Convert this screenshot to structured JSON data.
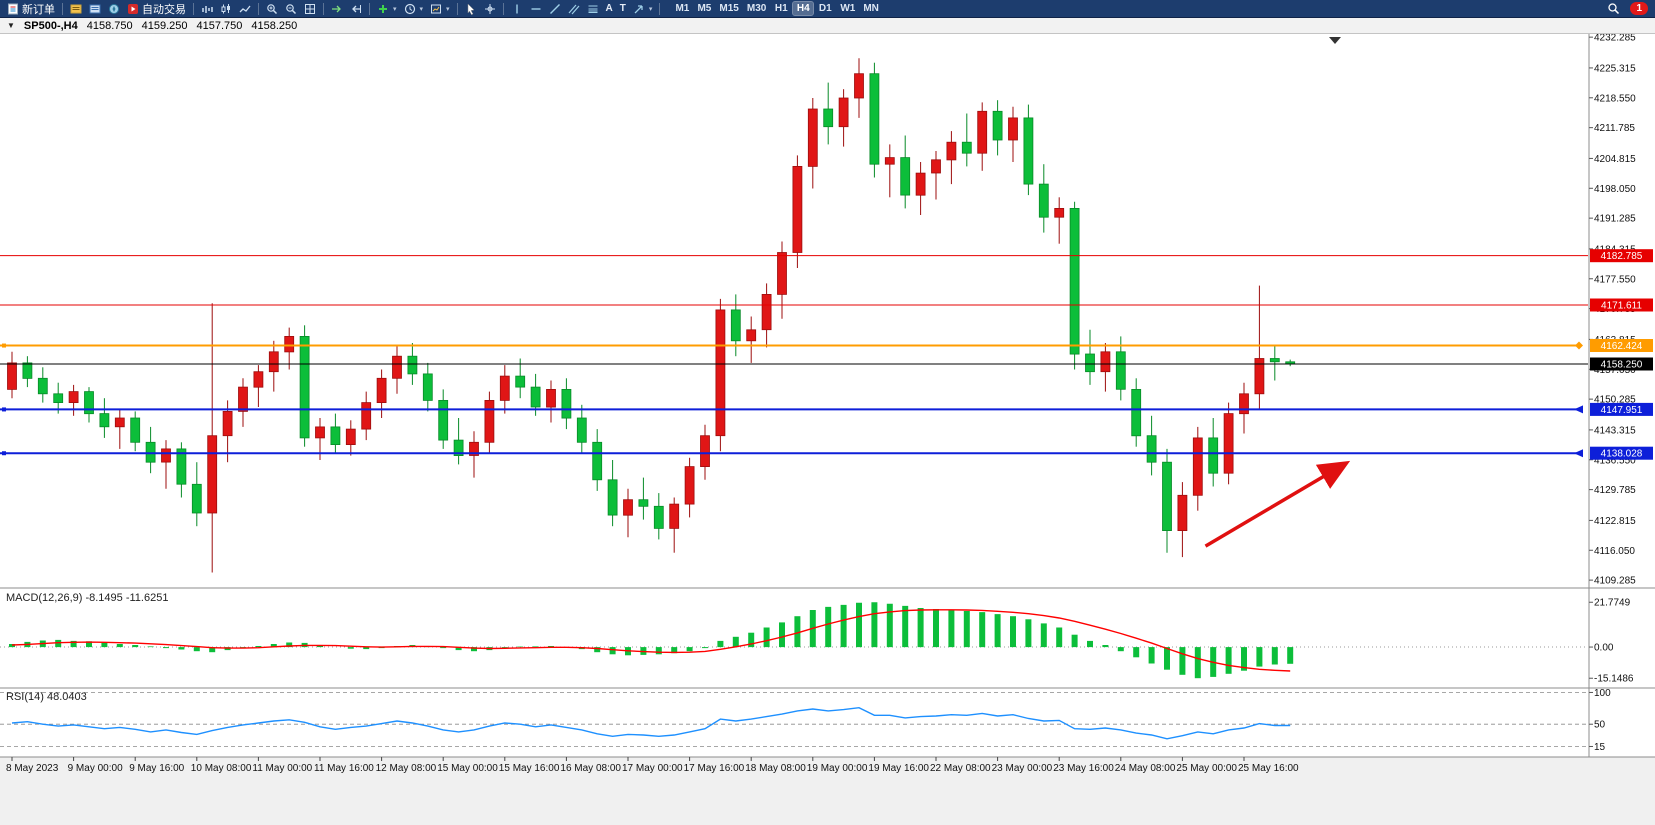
{
  "toolbar": {
    "new_order": "新订单",
    "autotrade": "自动交易",
    "timeframes": [
      "M1",
      "M5",
      "M15",
      "M30",
      "H1",
      "H4",
      "D1",
      "W1",
      "MN"
    ],
    "active_timeframe": "H4",
    "notification_count": "1",
    "icons": [
      "new-order",
      "market-watch",
      "data-window",
      "navigator",
      "autotrade",
      "bar-chart",
      "candlestick-chart",
      "line-chart",
      "zoom-in",
      "zoom-out",
      "tile-windows",
      "auto-scroll",
      "chart-shift",
      "indicators",
      "periods",
      "templates",
      "cursor",
      "crosshair",
      "vertical-line",
      "horizontal-line",
      "trendline",
      "channel",
      "fibonacci",
      "text",
      "text-label",
      "arrows",
      "search",
      "notification"
    ]
  },
  "chart_header": {
    "symbol_period": "SP500-,H4",
    "open": "4158.750",
    "high": "4159.250",
    "low": "4157.750",
    "close": "4158.250"
  },
  "chart_data": {
    "type": "candlestick",
    "symbol": "SP500-",
    "timeframe": "H4",
    "price_range": [
      4107.5,
      4233.0
    ],
    "price_axis_labels": [
      "4232.285",
      "4225.315",
      "4218.550",
      "4211.785",
      "4204.815",
      "4198.050",
      "4191.285",
      "4184.315",
      "4177.550",
      "4170.785",
      "4163.815",
      "4157.050",
      "4150.285",
      "4143.315",
      "4136.550",
      "4129.785",
      "4122.815",
      "4116.050",
      "4109.285"
    ],
    "time_labels": [
      "8 May 2023",
      "9 May 00:00",
      "9 May 16:00",
      "10 May 08:00",
      "11 May 00:00",
      "11 May 16:00",
      "12 May 08:00",
      "15 May 00:00",
      "15 May 16:00",
      "16 May 08:00",
      "17 May 00:00",
      "17 May 16:00",
      "18 May 08:00",
      "19 May 00:00",
      "19 May 16:00",
      "22 May 08:00",
      "23 May 00:00",
      "23 May 16:00",
      "24 May 08:00",
      "25 May 00:00",
      "25 May 16:00"
    ],
    "colors": {
      "up": "#e01616",
      "up_border": "#9c0d0d",
      "down": "#0cbe3a",
      "down_border": "#078a27"
    },
    "candles": [
      [
        4152.5,
        4161,
        4150.5,
        4158.5
      ],
      [
        4158.5,
        4160,
        4153,
        4155
      ],
      [
        4155,
        4157.5,
        4149.5,
        4151.5
      ],
      [
        4151.5,
        4154,
        4147,
        4149.5
      ],
      [
        4149.5,
        4153.5,
        4146.5,
        4152
      ],
      [
        4152,
        4153,
        4145,
        4147
      ],
      [
        4147,
        4150.5,
        4141.5,
        4144
      ],
      [
        4144,
        4148,
        4139,
        4146
      ],
      [
        4146,
        4147.5,
        4138.5,
        4140.5
      ],
      [
        4140.5,
        4144,
        4133.5,
        4136
      ],
      [
        4136,
        4141,
        4130,
        4139
      ],
      [
        4139,
        4140.5,
        4128,
        4131
      ],
      [
        4131,
        4136,
        4121.5,
        4124.5
      ],
      [
        4124.5,
        4172,
        4111,
        4142
      ],
      [
        4142,
        4150,
        4136,
        4147.5
      ],
      [
        4147.5,
        4155,
        4144,
        4153
      ],
      [
        4153,
        4158,
        4148.5,
        4156.5
      ],
      [
        4156.5,
        4163.5,
        4152,
        4161
      ],
      [
        4161,
        4166.5,
        4157,
        4164.5
      ],
      [
        4164.5,
        4167,
        4139.5,
        4141.5
      ],
      [
        4141.5,
        4146,
        4136.5,
        4144
      ],
      [
        4144,
        4147,
        4138,
        4140
      ],
      [
        4140,
        4145.5,
        4137.5,
        4143.5
      ],
      [
        4143.5,
        4152,
        4141,
        4149.5
      ],
      [
        4149.5,
        4157,
        4146,
        4155
      ],
      [
        4155,
        4162.5,
        4151.5,
        4160
      ],
      [
        4160,
        4163,
        4153.5,
        4156
      ],
      [
        4156,
        4158.5,
        4147.5,
        4150
      ],
      [
        4150,
        4152.5,
        4139,
        4141
      ],
      [
        4141,
        4146,
        4135.5,
        4137.5
      ],
      [
        4137.5,
        4143,
        4132.5,
        4140.5
      ],
      [
        4140.5,
        4152,
        4138,
        4150
      ],
      [
        4150,
        4158,
        4147,
        4155.5
      ],
      [
        4155.5,
        4159.5,
        4150.5,
        4153
      ],
      [
        4153,
        4156,
        4146.5,
        4148.5
      ],
      [
        4148.5,
        4154.5,
        4145,
        4152.5
      ],
      [
        4152.5,
        4155,
        4143.5,
        4146
      ],
      [
        4146,
        4149,
        4138,
        4140.5
      ],
      [
        4140.5,
        4143.5,
        4129.5,
        4132
      ],
      [
        4132,
        4136.5,
        4121.5,
        4124
      ],
      [
        4124,
        4130,
        4119,
        4127.5
      ],
      [
        4127.5,
        4132.5,
        4123,
        4126
      ],
      [
        4126,
        4129,
        4118.5,
        4121
      ],
      [
        4121,
        4128,
        4115.5,
        4126.5
      ],
      [
        4126.5,
        4137,
        4123.5,
        4135
      ],
      [
        4135,
        4144.5,
        4132,
        4142
      ],
      [
        4142,
        4173,
        4138.5,
        4170.5
      ],
      [
        4170.5,
        4174,
        4160,
        4163.5
      ],
      [
        4163.5,
        4169,
        4158.5,
        4166
      ],
      [
        4166,
        4176.5,
        4162,
        4174
      ],
      [
        4174,
        4186,
        4168.5,
        4183.5
      ],
      [
        4183.5,
        4205.5,
        4180,
        4203
      ],
      [
        4203,
        4218.5,
        4198,
        4216
      ],
      [
        4216,
        4222,
        4208,
        4212
      ],
      [
        4212,
        4220.5,
        4207.5,
        4218.5
      ],
      [
        4218.5,
        4227.5,
        4214,
        4224
      ],
      [
        4224,
        4226.5,
        4200.5,
        4203.5
      ],
      [
        4203.5,
        4208,
        4196,
        4205
      ],
      [
        4205,
        4210,
        4193.5,
        4196.5
      ],
      [
        4196.5,
        4204,
        4192,
        4201.5
      ],
      [
        4201.5,
        4206.5,
        4195.5,
        4204.5
      ],
      [
        4204.5,
        4211,
        4199,
        4208.5
      ],
      [
        4208.5,
        4215,
        4203,
        4206
      ],
      [
        4206,
        4217.5,
        4202,
        4215.5
      ],
      [
        4215.5,
        4218,
        4205.5,
        4209
      ],
      [
        4209,
        4216.5,
        4204,
        4214
      ],
      [
        4214,
        4217,
        4196.5,
        4199
      ],
      [
        4199,
        4203.5,
        4188,
        4191.5
      ],
      [
        4191.5,
        4196,
        4185.5,
        4193.5
      ],
      [
        4193.5,
        4195,
        4157,
        4160.5
      ],
      [
        4160.5,
        4166,
        4153.5,
        4156.5
      ],
      [
        4156.5,
        4163,
        4152,
        4161
      ],
      [
        4161,
        4164.5,
        4150,
        4152.5
      ],
      [
        4152.5,
        4155,
        4139.5,
        4142
      ],
      [
        4142,
        4146.5,
        4133,
        4136
      ],
      [
        4136,
        4139,
        4115.5,
        4120.5
      ],
      [
        4120.5,
        4131.5,
        4114.5,
        4128.5
      ],
      [
        4128.5,
        4144,
        4125,
        4141.5
      ],
      [
        4141.5,
        4146,
        4130.5,
        4133.5
      ],
      [
        4133.5,
        4149.5,
        4131,
        4147
      ],
      [
        4147,
        4154,
        4142.5,
        4151.5
      ],
      [
        4151.5,
        4176,
        4148,
        4159.5
      ],
      [
        4159.5,
        4162.5,
        4154.5,
        4158.75
      ],
      [
        4158.75,
        4159.25,
        4157.75,
        4158.25
      ]
    ],
    "hlines": [
      {
        "price": 4182.785,
        "label": "4182.785",
        "color": "#e60000",
        "width": 1,
        "full": true
      },
      {
        "price": 4171.611,
        "label": "4171.611",
        "color": "#e60000",
        "width": 1,
        "full": true
      },
      {
        "price": 4162.424,
        "label": "4162.424",
        "color": "#ff9c00",
        "width": 2,
        "full": false,
        "marker": "diamond"
      },
      {
        "price": 4158.25,
        "label": "4158.250",
        "color": "#000000",
        "width": 1,
        "full": true
      },
      {
        "price": 4147.951,
        "label": "4147.951",
        "color": "#0d1fd9",
        "width": 2,
        "full": false,
        "marker": "triangle"
      },
      {
        "price": 4138.028,
        "label": "4138.028",
        "color": "#0d1fd9",
        "width": 2,
        "full": false,
        "marker": "triangle"
      }
    ],
    "arrow": {
      "from_bar": 77.5,
      "from_price": 4117.0,
      "to_bar": 86.5,
      "to_price": 4135.5,
      "color": "#e01010"
    },
    "macd": {
      "name": "MACD(12,26,9)",
      "value_main": "-8.1495",
      "value_signal": "-11.6251",
      "range": [
        -19.9,
        28.7
      ],
      "hist_color": "#0cbe3a",
      "signal_color": "#ff0000",
      "axis_labels": [
        {
          "value": 21.7749,
          "label": "21.7749"
        },
        {
          "value": 0,
          "label": "0.00"
        },
        {
          "value": -15.1486,
          "label": "-15.1486"
        }
      ],
      "histogram": [
        1.5,
        2.5,
        3.2,
        3.5,
        3.0,
        2.8,
        2.0,
        1.5,
        1.0,
        0.3,
        -0.5,
        -1.2,
        -2.0,
        -2.5,
        -1.5,
        -0.5,
        0.5,
        1.5,
        2.2,
        2.0,
        1.0,
        0.0,
        -0.8,
        -1.0,
        -0.5,
        0.5,
        1.0,
        0.5,
        -0.5,
        -1.5,
        -2.0,
        -1.5,
        -0.5,
        0.2,
        0.3,
        0.5,
        0.0,
        -1.0,
        -2.5,
        -3.5,
        -4.0,
        -3.8,
        -3.5,
        -3.0,
        -2.0,
        -0.5,
        3.0,
        5.0,
        7.0,
        9.5,
        12.0,
        15.0,
        18.0,
        19.5,
        20.5,
        21.5,
        21.77,
        21.0,
        20.0,
        19.0,
        18.5,
        18.0,
        17.5,
        17.0,
        16.0,
        15.0,
        13.5,
        11.5,
        9.5,
        6.0,
        3.0,
        1.0,
        -2.0,
        -5.0,
        -8.0,
        -11.0,
        -13.5,
        -15.15,
        -14.5,
        -13.0,
        -11.5,
        -9.5,
        -8.5,
        -8.15
      ],
      "signal": [
        1.0,
        1.3,
        1.7,
        2.1,
        2.3,
        2.4,
        2.3,
        2.1,
        1.9,
        1.6,
        1.2,
        0.7,
        0.2,
        -0.3,
        -0.5,
        -0.5,
        -0.3,
        0.1,
        0.5,
        0.8,
        0.8,
        0.7,
        0.4,
        0.1,
        0.0,
        0.1,
        0.3,
        0.3,
        0.2,
        -0.1,
        -0.5,
        -0.7,
        -0.6,
        -0.4,
        -0.3,
        -0.1,
        -0.1,
        -0.3,
        -0.7,
        -1.3,
        -1.8,
        -2.2,
        -2.5,
        -2.6,
        -2.5,
        -2.1,
        -1.1,
        0.1,
        1.5,
        3.1,
        4.9,
        6.9,
        9.1,
        11.2,
        13.1,
        14.8,
        16.2,
        17.1,
        17.7,
        18.0,
        18.1,
        18.1,
        18.0,
        17.8,
        17.4,
        16.9,
        16.2,
        15.3,
        14.1,
        12.5,
        10.6,
        8.7,
        6.6,
        4.3,
        1.9,
        -0.7,
        -3.3,
        -5.6,
        -7.4,
        -8.9,
        -10.0,
        -10.8,
        -11.3,
        -11.63
      ]
    },
    "rsi": {
      "name": "RSI(14)",
      "value": "48.0403",
      "range": [
        0,
        107
      ],
      "color": "#1e90ff",
      "levels": [
        {
          "value": 100,
          "label": "100"
        },
        {
          "value": 50,
          "label": "50"
        },
        {
          "value": 15,
          "label": "15"
        }
      ],
      "values": [
        52,
        54,
        50,
        47,
        49,
        46,
        43,
        45,
        42,
        38,
        41,
        37,
        34,
        40,
        45,
        49,
        52,
        55,
        57,
        53,
        46,
        42,
        45,
        47,
        51,
        55,
        52,
        47,
        41,
        38,
        41,
        47,
        52,
        50,
        46,
        49,
        45,
        41,
        35,
        31,
        34,
        33,
        31,
        33,
        38,
        43,
        58,
        55,
        58,
        62,
        66,
        71,
        74,
        71,
        73,
        76,
        64,
        64,
        60,
        62,
        63,
        65,
        64,
        67,
        63,
        65,
        59,
        55,
        56,
        43,
        42,
        44,
        41,
        36,
        33,
        27,
        32,
        38,
        35,
        41,
        44,
        51,
        48,
        48.04
      ]
    }
  }
}
